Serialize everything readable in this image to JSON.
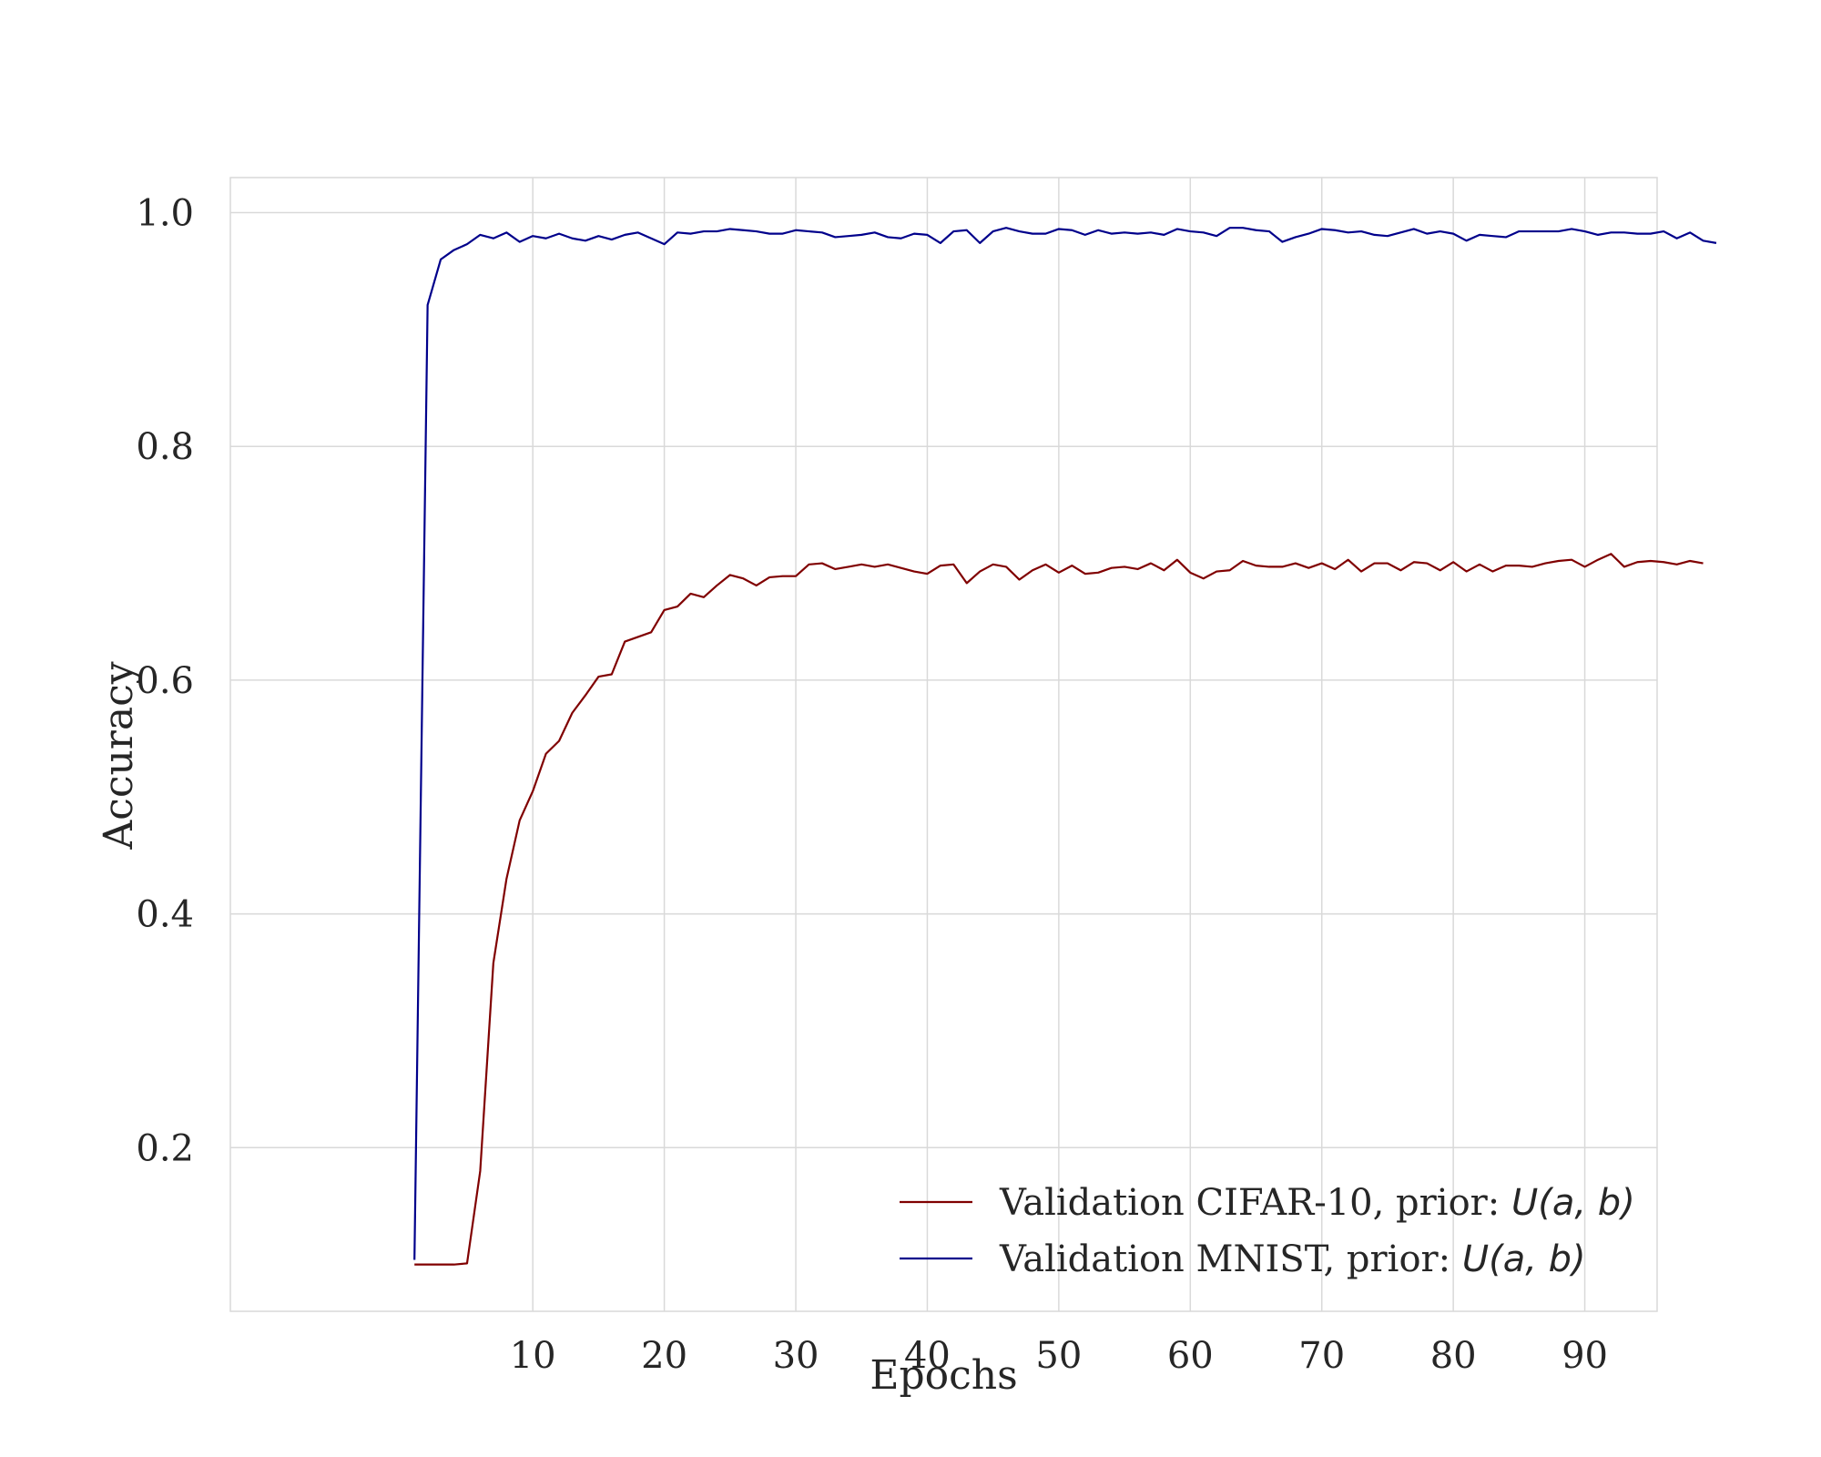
{
  "chart_data": {
    "type": "line",
    "title": "",
    "xlabel": "Epochs",
    "ylabel": "Accuracy",
    "xlim": [
      -13,
      95.5
    ],
    "ylim": [
      0.06,
      1.03
    ],
    "xticks": [
      10,
      20,
      30,
      40,
      50,
      60,
      70,
      80,
      90
    ],
    "xtick_labels": [
      "10",
      "20",
      "30",
      "40",
      "50",
      "60",
      "70",
      "80",
      "90"
    ],
    "yticks": [
      0.2,
      0.4,
      0.6,
      0.8,
      1.0
    ],
    "ytick_labels": [
      "0.2",
      "0.4",
      "0.6",
      "0.8",
      "1.0"
    ],
    "grid": true,
    "legend_position": "lower-right",
    "series": [
      {
        "name": "Validation CIFAR-10, prior: U(a, b)",
        "legend_prefix": "Validation CIFAR-10, prior: ",
        "legend_math": "U(a, b)",
        "color": "#800000",
        "x_start": 1,
        "values": [
          0.1,
          0.1,
          0.1,
          0.1,
          0.101,
          0.18,
          0.358,
          0.43,
          0.48,
          0.505,
          0.537,
          0.548,
          0.572,
          0.587,
          0.603,
          0.605,
          0.633,
          0.637,
          0.641,
          0.66,
          0.663,
          0.674,
          0.671,
          0.681,
          0.69,
          0.687,
          0.681,
          0.688,
          0.689,
          0.689,
          0.699,
          0.7,
          0.695,
          0.697,
          0.699,
          0.697,
          0.699,
          0.696,
          0.693,
          0.691,
          0.698,
          0.699,
          0.683,
          0.693,
          0.699,
          0.697,
          0.686,
          0.694,
          0.699,
          0.692,
          0.698,
          0.691,
          0.692,
          0.696,
          0.697,
          0.695,
          0.7,
          0.694,
          0.703,
          0.692,
          0.687,
          0.693,
          0.694,
          0.702,
          0.698,
          0.697,
          0.697,
          0.7,
          0.696,
          0.7,
          0.695,
          0.703,
          0.693,
          0.7,
          0.7,
          0.694,
          0.701,
          0.7,
          0.694,
          0.701,
          0.693,
          0.699,
          0.693,
          0.698,
          0.698,
          0.697,
          0.7,
          0.702,
          0.703,
          0.697,
          0.703,
          0.708,
          0.697,
          0.701,
          0.702,
          0.701,
          0.699,
          0.702,
          0.7
        ]
      },
      {
        "name": "Validation MNIST, prior: U(a, b)",
        "legend_prefix": "Validation MNIST, prior: ",
        "legend_math": "U(a, b)",
        "color": "#00008b",
        "x_start": 1,
        "values": [
          0.104,
          0.921,
          0.96,
          0.968,
          0.973,
          0.981,
          0.978,
          0.983,
          0.975,
          0.98,
          0.978,
          0.982,
          0.978,
          0.976,
          0.98,
          0.977,
          0.981,
          0.983,
          0.978,
          0.973,
          0.983,
          0.982,
          0.984,
          0.984,
          0.986,
          0.985,
          0.984,
          0.982,
          0.982,
          0.985,
          0.984,
          0.983,
          0.979,
          0.98,
          0.981,
          0.983,
          0.979,
          0.978,
          0.982,
          0.981,
          0.974,
          0.984,
          0.985,
          0.974,
          0.984,
          0.987,
          0.984,
          0.982,
          0.982,
          0.986,
          0.985,
          0.981,
          0.985,
          0.982,
          0.983,
          0.982,
          0.983,
          0.981,
          0.986,
          0.984,
          0.983,
          0.98,
          0.987,
          0.987,
          0.985,
          0.984,
          0.975,
          0.979,
          0.982,
          0.986,
          0.985,
          0.983,
          0.984,
          0.981,
          0.98,
          0.983,
          0.986,
          0.982,
          0.984,
          0.982,
          0.976,
          0.981,
          0.98,
          0.979,
          0.984,
          0.984,
          0.984,
          0.984,
          0.986,
          0.984,
          0.981,
          0.983,
          0.983,
          0.982,
          0.982,
          0.984,
          0.978,
          0.983,
          0.976,
          0.974
        ]
      }
    ]
  },
  "colors": {
    "grid": "#d9d9d9",
    "frame": "#d9d9d9",
    "text": "#262626",
    "background": "#ffffff"
  }
}
